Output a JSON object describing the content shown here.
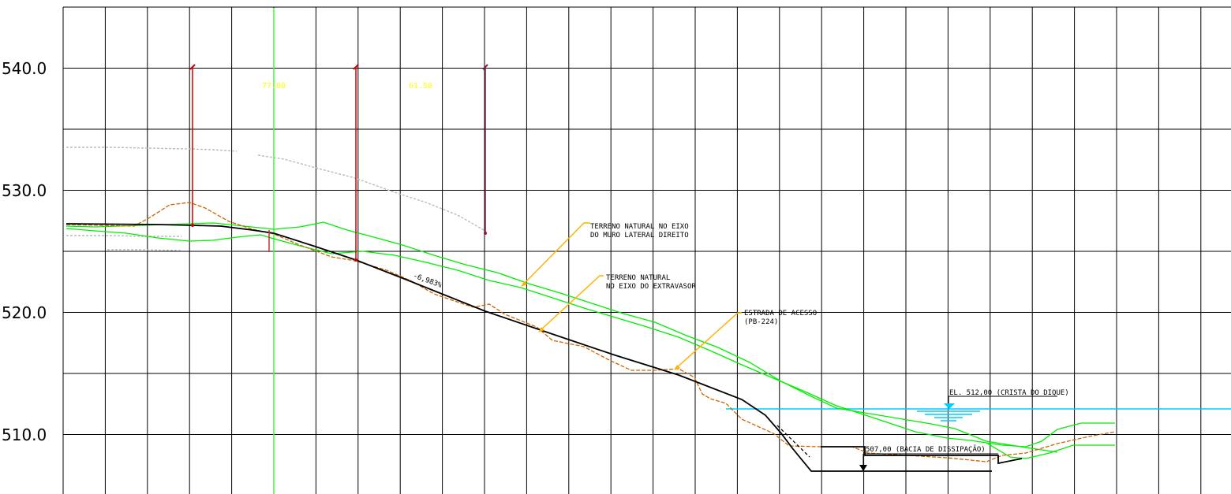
{
  "axis": {
    "y_ticks": [
      "540.0",
      "530.0",
      "520.0",
      "510.0"
    ]
  },
  "dimensions": {
    "left": "77.00",
    "right": "61.50"
  },
  "annotations": {
    "terreno_muro_line1": "TERRENO NATURAL NO EIXO",
    "terreno_muro_line2": "DO MURO LATERAL DIREITO",
    "terreno_extravasor_line1": "TERRENO NATURAL",
    "terreno_extravasor_line2": "NO EIXO DO EXTRAVASOR",
    "estrada_line1": "ESTRADA DE ACESSO",
    "estrada_line2": "(PB-224)",
    "crista_dique": "EL. 512,00 (CRISTA DO DIQUE)",
    "bacia": "507,00 (BACIA DE DISSIPAÇÃO)",
    "slope": "-6,983%"
  },
  "colors": {
    "grid": "#000000",
    "profile": "#000000",
    "terrain_green": "#00ee00",
    "terrain_orange": "#cc6600",
    "leader": "#ffb400",
    "water": "#00ccff",
    "dimension_line": "#cc0000",
    "reference_grey": "#bbbbbb",
    "center_line": "#33ff33"
  }
}
